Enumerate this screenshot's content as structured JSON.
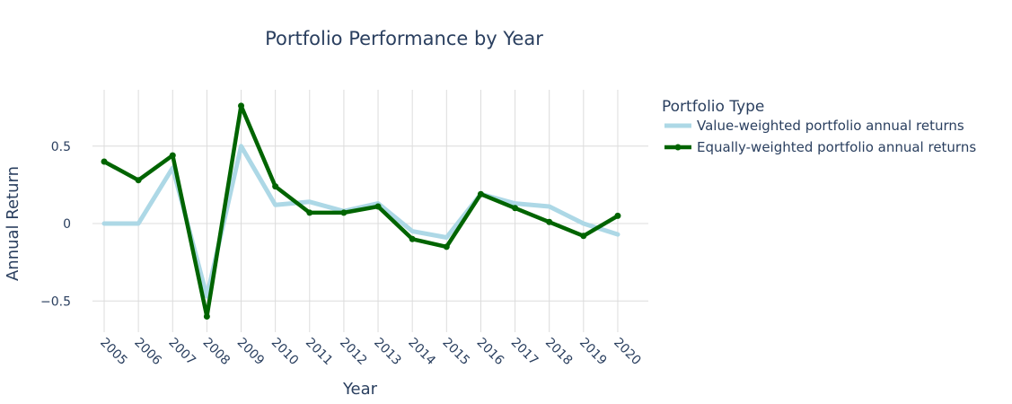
{
  "chart_data": {
    "type": "line",
    "title": "Portfolio Performance by Year",
    "xlabel": "Year",
    "ylabel": "Annual Return",
    "x": [
      "2005",
      "2006",
      "2007",
      "2008",
      "2009",
      "2010",
      "2011",
      "2012",
      "2013",
      "2014",
      "2015",
      "2016",
      "2017",
      "2018",
      "2019",
      "2020"
    ],
    "yticks": [
      -0.5,
      0,
      0.5
    ],
    "ytick_labels": [
      "−0.5",
      "0",
      "0.5"
    ],
    "ylim": [
      -0.69,
      0.88
    ],
    "grid": true,
    "legend": {
      "title": "Portfolio Type",
      "placement": "right"
    },
    "series": [
      {
        "name": "Value-weighted portfolio annual returns",
        "color": "#add8e6",
        "markers": false,
        "values": [
          0.0,
          0.0,
          0.36,
          -0.47,
          0.5,
          0.12,
          0.14,
          0.08,
          0.13,
          -0.05,
          -0.09,
          0.19,
          0.13,
          0.11,
          0.0,
          -0.07
        ]
      },
      {
        "name": "Equally-weighted portfolio annual returns",
        "color": "#006400",
        "markers": true,
        "values": [
          0.4,
          0.28,
          0.44,
          -0.6,
          0.76,
          0.24,
          0.07,
          0.07,
          0.11,
          -0.1,
          -0.15,
          0.19,
          0.1,
          0.01,
          -0.08,
          0.05
        ]
      }
    ]
  }
}
